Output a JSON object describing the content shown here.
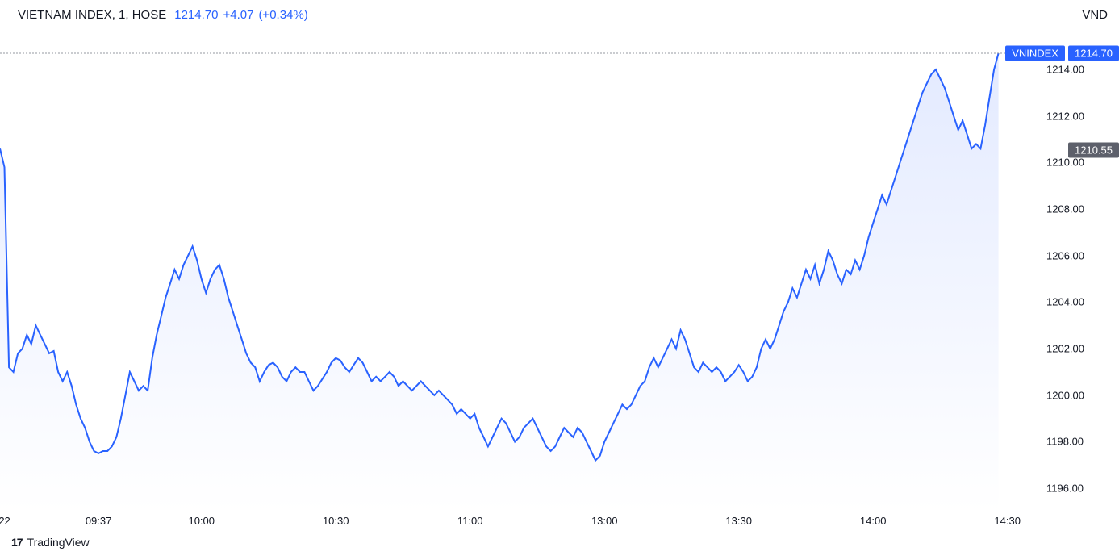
{
  "header": {
    "name": "VIETNAM INDEX",
    "interval": "1",
    "exchange": "HOSE",
    "last": "1214.70",
    "change": "+4.07",
    "pct": "(+0.34%)"
  },
  "currency": "VND",
  "branding": {
    "logo": "17",
    "text": "TradingView"
  },
  "chart": {
    "type": "area",
    "line_color": "#2962ff",
    "fill_top": "#e3eaff",
    "fill_bottom": "#ffffff",
    "crosshair_color": "#9598a1",
    "background_color": "#ffffff",
    "text_color": "#131722",
    "label_fontsize": 13,
    "header_fontsize": 15,
    "y_axis": {
      "min": 1195.0,
      "max": 1215.6,
      "ticks": [
        1196,
        1198,
        1200,
        1202,
        1204,
        1206,
        1208,
        1210,
        1212,
        1214
      ]
    },
    "x_axis": {
      "min": 0,
      "max": 231,
      "ticks": [
        {
          "t": 1,
          "label": "22"
        },
        {
          "t": 22,
          "label": "09:37"
        },
        {
          "t": 45,
          "label": "10:00"
        },
        {
          "t": 75,
          "label": "10:30"
        },
        {
          "t": 105,
          "label": "11:00"
        },
        {
          "t": 135,
          "label": "13:00"
        },
        {
          "t": 165,
          "label": "13:30"
        },
        {
          "t": 195,
          "label": "14:00"
        },
        {
          "t": 225,
          "label": "14:30"
        }
      ]
    },
    "price_line": {
      "value": 1214.7,
      "ticker_badge": "VNINDEX",
      "ticker_badge_color": "#2962ff",
      "value_badge": "1214.70",
      "value_badge_bg": "#2962ff"
    },
    "crosshair": {
      "value": 1210.55,
      "badge": "1210.55",
      "badge_bg": "#5d606b"
    },
    "series": [
      {
        "t": 0,
        "v": 1210.6
      },
      {
        "t": 1,
        "v": 1209.8
      },
      {
        "t": 2,
        "v": 1201.2
      },
      {
        "t": 3,
        "v": 1201.0
      },
      {
        "t": 4,
        "v": 1201.8
      },
      {
        "t": 5,
        "v": 1202.0
      },
      {
        "t": 6,
        "v": 1202.6
      },
      {
        "t": 7,
        "v": 1202.2
      },
      {
        "t": 8,
        "v": 1203.0
      },
      {
        "t": 9,
        "v": 1202.6
      },
      {
        "t": 10,
        "v": 1202.2
      },
      {
        "t": 11,
        "v": 1201.8
      },
      {
        "t": 12,
        "v": 1201.9
      },
      {
        "t": 13,
        "v": 1201.0
      },
      {
        "t": 14,
        "v": 1200.6
      },
      {
        "t": 15,
        "v": 1201.0
      },
      {
        "t": 16,
        "v": 1200.4
      },
      {
        "t": 17,
        "v": 1199.6
      },
      {
        "t": 18,
        "v": 1199.0
      },
      {
        "t": 19,
        "v": 1198.6
      },
      {
        "t": 20,
        "v": 1198.0
      },
      {
        "t": 21,
        "v": 1197.6
      },
      {
        "t": 22,
        "v": 1197.5
      },
      {
        "t": 23,
        "v": 1197.6
      },
      {
        "t": 24,
        "v": 1197.6
      },
      {
        "t": 25,
        "v": 1197.8
      },
      {
        "t": 26,
        "v": 1198.2
      },
      {
        "t": 27,
        "v": 1199.0
      },
      {
        "t": 28,
        "v": 1200.0
      },
      {
        "t": 29,
        "v": 1201.0
      },
      {
        "t": 30,
        "v": 1200.6
      },
      {
        "t": 31,
        "v": 1200.2
      },
      {
        "t": 32,
        "v": 1200.4
      },
      {
        "t": 33,
        "v": 1200.2
      },
      {
        "t": 34,
        "v": 1201.6
      },
      {
        "t": 35,
        "v": 1202.6
      },
      {
        "t": 36,
        "v": 1203.4
      },
      {
        "t": 37,
        "v": 1204.2
      },
      {
        "t": 38,
        "v": 1204.8
      },
      {
        "t": 39,
        "v": 1205.4
      },
      {
        "t": 40,
        "v": 1205.0
      },
      {
        "t": 41,
        "v": 1205.6
      },
      {
        "t": 42,
        "v": 1206.0
      },
      {
        "t": 43,
        "v": 1206.4
      },
      {
        "t": 44,
        "v": 1205.8
      },
      {
        "t": 45,
        "v": 1205.0
      },
      {
        "t": 46,
        "v": 1204.4
      },
      {
        "t": 47,
        "v": 1205.0
      },
      {
        "t": 48,
        "v": 1205.4
      },
      {
        "t": 49,
        "v": 1205.6
      },
      {
        "t": 50,
        "v": 1205.0
      },
      {
        "t": 51,
        "v": 1204.2
      },
      {
        "t": 52,
        "v": 1203.6
      },
      {
        "t": 53,
        "v": 1203.0
      },
      {
        "t": 54,
        "v": 1202.4
      },
      {
        "t": 55,
        "v": 1201.8
      },
      {
        "t": 56,
        "v": 1201.4
      },
      {
        "t": 57,
        "v": 1201.2
      },
      {
        "t": 58,
        "v": 1200.6
      },
      {
        "t": 59,
        "v": 1201.0
      },
      {
        "t": 60,
        "v": 1201.3
      },
      {
        "t": 61,
        "v": 1201.4
      },
      {
        "t": 62,
        "v": 1201.2
      },
      {
        "t": 63,
        "v": 1200.8
      },
      {
        "t": 64,
        "v": 1200.6
      },
      {
        "t": 65,
        "v": 1201.0
      },
      {
        "t": 66,
        "v": 1201.2
      },
      {
        "t": 67,
        "v": 1201.0
      },
      {
        "t": 68,
        "v": 1201.0
      },
      {
        "t": 69,
        "v": 1200.6
      },
      {
        "t": 70,
        "v": 1200.2
      },
      {
        "t": 71,
        "v": 1200.4
      },
      {
        "t": 72,
        "v": 1200.7
      },
      {
        "t": 73,
        "v": 1201.0
      },
      {
        "t": 74,
        "v": 1201.4
      },
      {
        "t": 75,
        "v": 1201.6
      },
      {
        "t": 76,
        "v": 1201.5
      },
      {
        "t": 77,
        "v": 1201.2
      },
      {
        "t": 78,
        "v": 1201.0
      },
      {
        "t": 79,
        "v": 1201.3
      },
      {
        "t": 80,
        "v": 1201.6
      },
      {
        "t": 81,
        "v": 1201.4
      },
      {
        "t": 82,
        "v": 1201.0
      },
      {
        "t": 83,
        "v": 1200.6
      },
      {
        "t": 84,
        "v": 1200.8
      },
      {
        "t": 85,
        "v": 1200.6
      },
      {
        "t": 86,
        "v": 1200.8
      },
      {
        "t": 87,
        "v": 1201.0
      },
      {
        "t": 88,
        "v": 1200.8
      },
      {
        "t": 89,
        "v": 1200.4
      },
      {
        "t": 90,
        "v": 1200.6
      },
      {
        "t": 91,
        "v": 1200.4
      },
      {
        "t": 92,
        "v": 1200.2
      },
      {
        "t": 93,
        "v": 1200.4
      },
      {
        "t": 94,
        "v": 1200.6
      },
      {
        "t": 95,
        "v": 1200.4
      },
      {
        "t": 96,
        "v": 1200.2
      },
      {
        "t": 97,
        "v": 1200.0
      },
      {
        "t": 98,
        "v": 1200.2
      },
      {
        "t": 99,
        "v": 1200.0
      },
      {
        "t": 100,
        "v": 1199.8
      },
      {
        "t": 101,
        "v": 1199.6
      },
      {
        "t": 102,
        "v": 1199.2
      },
      {
        "t": 103,
        "v": 1199.4
      },
      {
        "t": 104,
        "v": 1199.2
      },
      {
        "t": 105,
        "v": 1199.0
      },
      {
        "t": 106,
        "v": 1199.2
      },
      {
        "t": 107,
        "v": 1198.6
      },
      {
        "t": 108,
        "v": 1198.2
      },
      {
        "t": 109,
        "v": 1197.8
      },
      {
        "t": 110,
        "v": 1198.2
      },
      {
        "t": 111,
        "v": 1198.6
      },
      {
        "t": 112,
        "v": 1199.0
      },
      {
        "t": 113,
        "v": 1198.8
      },
      {
        "t": 114,
        "v": 1198.4
      },
      {
        "t": 115,
        "v": 1198.0
      },
      {
        "t": 116,
        "v": 1198.2
      },
      {
        "t": 117,
        "v": 1198.6
      },
      {
        "t": 118,
        "v": 1198.8
      },
      {
        "t": 119,
        "v": 1199.0
      },
      {
        "t": 120,
        "v": 1198.6
      },
      {
        "t": 121,
        "v": 1198.2
      },
      {
        "t": 122,
        "v": 1197.8
      },
      {
        "t": 123,
        "v": 1197.6
      },
      {
        "t": 124,
        "v": 1197.8
      },
      {
        "t": 125,
        "v": 1198.2
      },
      {
        "t": 126,
        "v": 1198.6
      },
      {
        "t": 127,
        "v": 1198.4
      },
      {
        "t": 128,
        "v": 1198.2
      },
      {
        "t": 129,
        "v": 1198.6
      },
      {
        "t": 130,
        "v": 1198.4
      },
      {
        "t": 131,
        "v": 1198.0
      },
      {
        "t": 132,
        "v": 1197.6
      },
      {
        "t": 133,
        "v": 1197.2
      },
      {
        "t": 134,
        "v": 1197.4
      },
      {
        "t": 135,
        "v": 1198.0
      },
      {
        "t": 136,
        "v": 1198.4
      },
      {
        "t": 137,
        "v": 1198.8
      },
      {
        "t": 138,
        "v": 1199.2
      },
      {
        "t": 139,
        "v": 1199.6
      },
      {
        "t": 140,
        "v": 1199.4
      },
      {
        "t": 141,
        "v": 1199.6
      },
      {
        "t": 142,
        "v": 1200.0
      },
      {
        "t": 143,
        "v": 1200.4
      },
      {
        "t": 144,
        "v": 1200.6
      },
      {
        "t": 145,
        "v": 1201.2
      },
      {
        "t": 146,
        "v": 1201.6
      },
      {
        "t": 147,
        "v": 1201.2
      },
      {
        "t": 148,
        "v": 1201.6
      },
      {
        "t": 149,
        "v": 1202.0
      },
      {
        "t": 150,
        "v": 1202.4
      },
      {
        "t": 151,
        "v": 1202.0
      },
      {
        "t": 152,
        "v": 1202.8
      },
      {
        "t": 153,
        "v": 1202.4
      },
      {
        "t": 154,
        "v": 1201.8
      },
      {
        "t": 155,
        "v": 1201.2
      },
      {
        "t": 156,
        "v": 1201.0
      },
      {
        "t": 157,
        "v": 1201.4
      },
      {
        "t": 158,
        "v": 1201.2
      },
      {
        "t": 159,
        "v": 1201.0
      },
      {
        "t": 160,
        "v": 1201.2
      },
      {
        "t": 161,
        "v": 1201.0
      },
      {
        "t": 162,
        "v": 1200.6
      },
      {
        "t": 163,
        "v": 1200.8
      },
      {
        "t": 164,
        "v": 1201.0
      },
      {
        "t": 165,
        "v": 1201.3
      },
      {
        "t": 166,
        "v": 1201.0
      },
      {
        "t": 167,
        "v": 1200.6
      },
      {
        "t": 168,
        "v": 1200.8
      },
      {
        "t": 169,
        "v": 1201.2
      },
      {
        "t": 170,
        "v": 1202.0
      },
      {
        "t": 171,
        "v": 1202.4
      },
      {
        "t": 172,
        "v": 1202.0
      },
      {
        "t": 173,
        "v": 1202.4
      },
      {
        "t": 174,
        "v": 1203.0
      },
      {
        "t": 175,
        "v": 1203.6
      },
      {
        "t": 176,
        "v": 1204.0
      },
      {
        "t": 177,
        "v": 1204.6
      },
      {
        "t": 178,
        "v": 1204.2
      },
      {
        "t": 179,
        "v": 1204.8
      },
      {
        "t": 180,
        "v": 1205.4
      },
      {
        "t": 181,
        "v": 1205.0
      },
      {
        "t": 182,
        "v": 1205.6
      },
      {
        "t": 183,
        "v": 1204.8
      },
      {
        "t": 184,
        "v": 1205.4
      },
      {
        "t": 185,
        "v": 1206.2
      },
      {
        "t": 186,
        "v": 1205.8
      },
      {
        "t": 187,
        "v": 1205.2
      },
      {
        "t": 188,
        "v": 1204.8
      },
      {
        "t": 189,
        "v": 1205.4
      },
      {
        "t": 190,
        "v": 1205.2
      },
      {
        "t": 191,
        "v": 1205.8
      },
      {
        "t": 192,
        "v": 1205.4
      },
      {
        "t": 193,
        "v": 1206.0
      },
      {
        "t": 194,
        "v": 1206.8
      },
      {
        "t": 195,
        "v": 1207.4
      },
      {
        "t": 196,
        "v": 1208.0
      },
      {
        "t": 197,
        "v": 1208.6
      },
      {
        "t": 198,
        "v": 1208.2
      },
      {
        "t": 199,
        "v": 1208.8
      },
      {
        "t": 200,
        "v": 1209.4
      },
      {
        "t": 201,
        "v": 1210.0
      },
      {
        "t": 202,
        "v": 1210.6
      },
      {
        "t": 203,
        "v": 1211.2
      },
      {
        "t": 204,
        "v": 1211.8
      },
      {
        "t": 205,
        "v": 1212.4
      },
      {
        "t": 206,
        "v": 1213.0
      },
      {
        "t": 207,
        "v": 1213.4
      },
      {
        "t": 208,
        "v": 1213.8
      },
      {
        "t": 209,
        "v": 1214.0
      },
      {
        "t": 210,
        "v": 1213.6
      },
      {
        "t": 211,
        "v": 1213.2
      },
      {
        "t": 212,
        "v": 1212.6
      },
      {
        "t": 213,
        "v": 1212.0
      },
      {
        "t": 214,
        "v": 1211.4
      },
      {
        "t": 215,
        "v": 1211.8
      },
      {
        "t": 216,
        "v": 1211.2
      },
      {
        "t": 217,
        "v": 1210.6
      },
      {
        "t": 218,
        "v": 1210.8
      },
      {
        "t": 219,
        "v": 1210.6
      },
      {
        "t": 220,
        "v": 1211.6
      },
      {
        "t": 221,
        "v": 1212.8
      },
      {
        "t": 222,
        "v": 1214.0
      },
      {
        "t": 223,
        "v": 1214.7
      }
    ]
  }
}
